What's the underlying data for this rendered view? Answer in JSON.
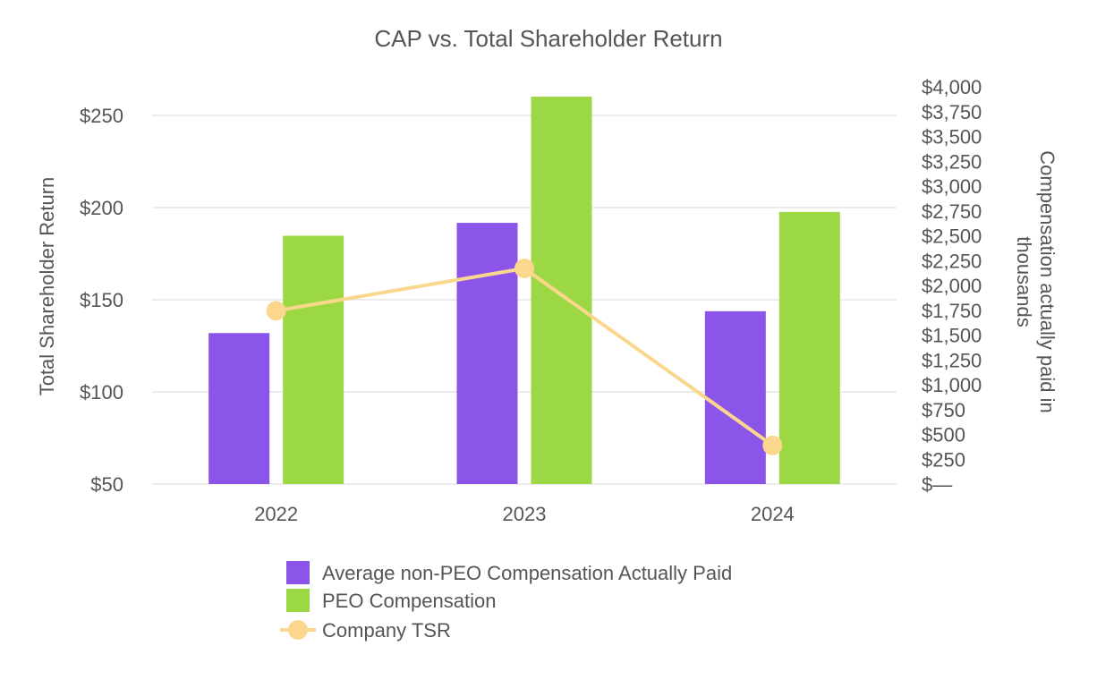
{
  "chart_data": {
    "type": "bar",
    "title": "CAP vs. Total Shareholder Return",
    "categories": [
      "2022",
      "2023",
      "2024"
    ],
    "ylabel_left": "Total Shareholder Return",
    "ylabel_right_line1": "Compensation actually paid in",
    "ylabel_right_line2": "thousands",
    "left_axis": {
      "ylim": [
        50,
        250
      ],
      "ticks": [
        250,
        200,
        150,
        100,
        50
      ],
      "tick_labels": [
        "$250",
        "$200",
        "$150",
        "$100",
        "$50"
      ]
    },
    "right_axis": {
      "ylim": [
        0,
        4000
      ],
      "ticks": [
        4000,
        3750,
        3500,
        3250,
        3000,
        2750,
        2500,
        2250,
        2000,
        1750,
        1500,
        1250,
        1000,
        750,
        500,
        250,
        0
      ],
      "tick_labels": [
        "$4,000",
        "$3,750",
        "$3,500",
        "$3,250",
        "$3,000",
        "$2,750",
        "$2,500",
        "$2,250",
        "$2,000",
        "$1,750",
        "$1,500",
        "$1,250",
        "$1,000",
        "$750",
        "$500",
        "$250",
        "$—"
      ]
    },
    "series": [
      {
        "name": "Average non-PEO Compensation Actually Paid",
        "type": "bar",
        "axis": "right",
        "color": "#8b55ea",
        "values": [
          1520,
          2630,
          1740
        ]
      },
      {
        "name": "PEO Compensation",
        "type": "bar",
        "axis": "right",
        "color": "#9bd843",
        "values": [
          2500,
          3900,
          2740
        ]
      },
      {
        "name": "Company TSR",
        "type": "line",
        "axis": "left",
        "color": "#fbd78e",
        "values": [
          144,
          167,
          71
        ]
      }
    ],
    "grid": true,
    "legend_position": "bottom"
  }
}
